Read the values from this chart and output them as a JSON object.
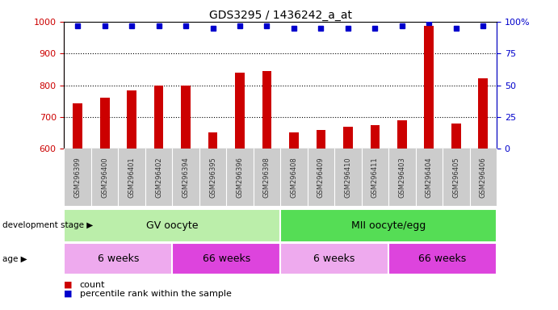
{
  "title": "GDS3295 / 1436242_a_at",
  "samples": [
    "GSM296399",
    "GSM296400",
    "GSM296401",
    "GSM296402",
    "GSM296394",
    "GSM296395",
    "GSM296396",
    "GSM296398",
    "GSM296408",
    "GSM296409",
    "GSM296410",
    "GSM296411",
    "GSM296403",
    "GSM296404",
    "GSM296405",
    "GSM296406"
  ],
  "counts": [
    743,
    760,
    785,
    798,
    798,
    651,
    840,
    845,
    651,
    660,
    670,
    675,
    690,
    988,
    680,
    822
  ],
  "percentile_ranks": [
    97,
    97,
    97,
    97,
    97,
    95,
    97,
    97,
    95,
    95,
    95,
    95,
    97,
    99,
    95,
    97
  ],
  "ylim_left": [
    600,
    1000
  ],
  "ylim_right": [
    0,
    100
  ],
  "yticks_left": [
    600,
    700,
    800,
    900,
    1000
  ],
  "yticks_right": [
    0,
    25,
    50,
    75,
    100
  ],
  "bar_color": "#cc0000",
  "dot_color": "#0000cc",
  "grid_lines": [
    700,
    800,
    900
  ],
  "development_stages": [
    {
      "label": "GV oocyte",
      "start": 0,
      "end": 8,
      "color": "#bbeeaa"
    },
    {
      "label": "MII oocyte/egg",
      "start": 8,
      "end": 16,
      "color": "#55dd55"
    }
  ],
  "ages": [
    {
      "label": "6 weeks",
      "start": 0,
      "end": 4,
      "color": "#eeaaee"
    },
    {
      "label": "66 weeks",
      "start": 4,
      "end": 8,
      "color": "#dd44dd"
    },
    {
      "label": "6 weeks",
      "start": 8,
      "end": 12,
      "color": "#eeaaee"
    },
    {
      "label": "66 weeks",
      "start": 12,
      "end": 16,
      "color": "#dd44dd"
    }
  ],
  "dev_stage_label": "development stage",
  "age_label": "age",
  "left_axis_color": "#cc0000",
  "right_axis_color": "#0000cc",
  "tick_bg_color": "#cccccc",
  "bar_width": 0.35
}
